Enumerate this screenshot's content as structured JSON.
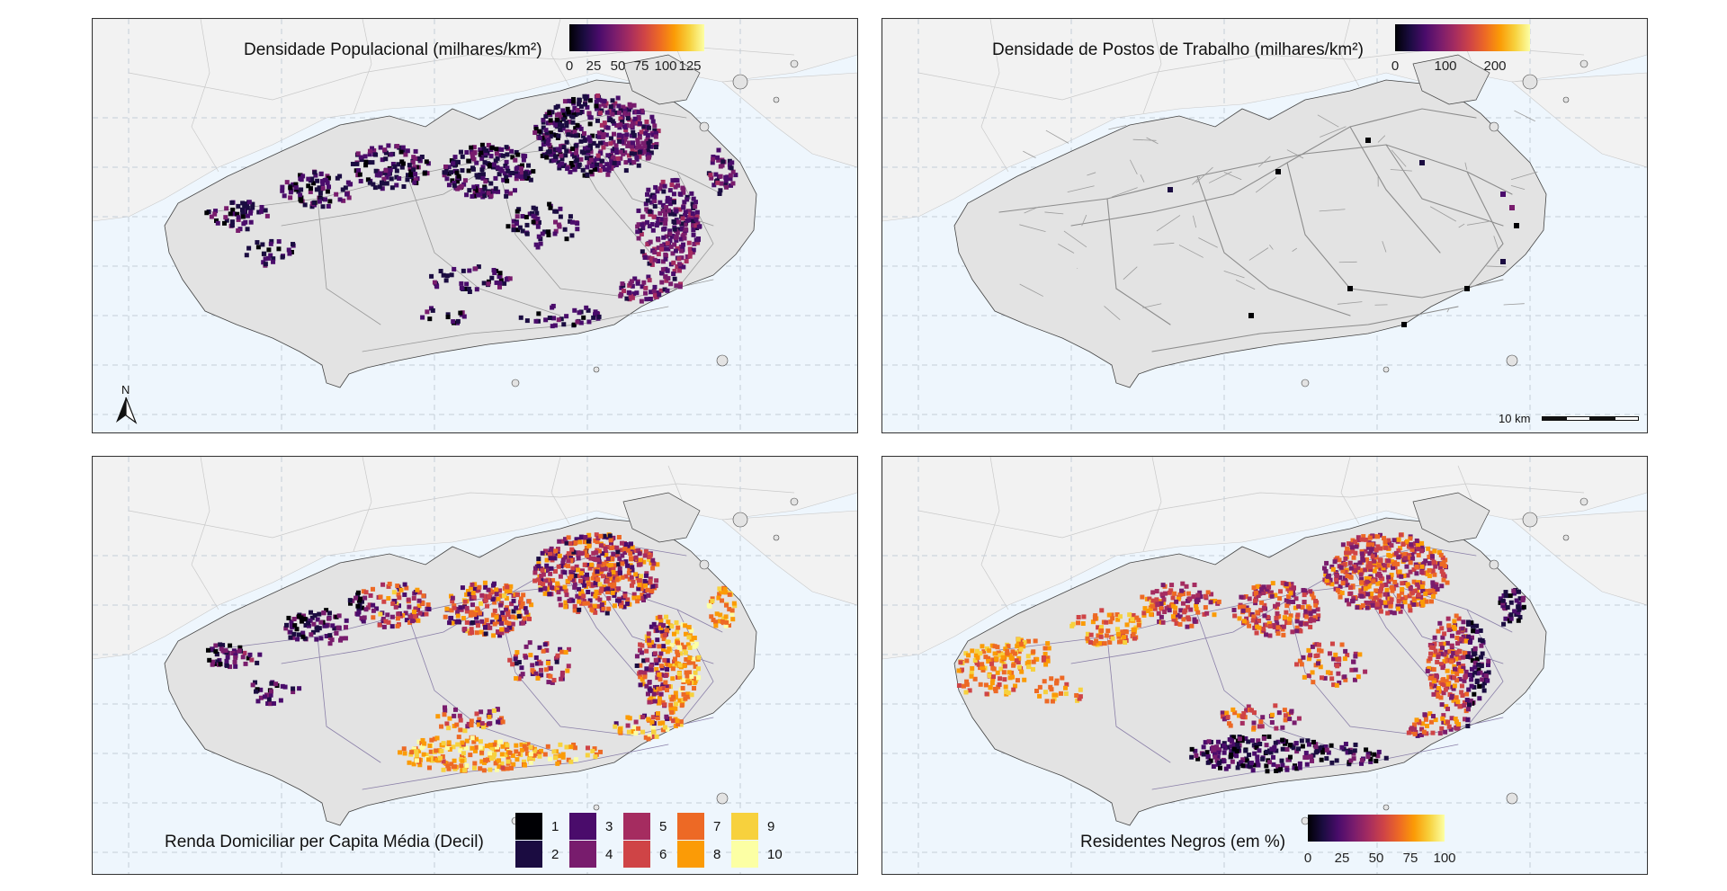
{
  "panels": {
    "population": {
      "title": "Densidade Populacional (milhares/km²)",
      "ticks": [
        "0",
        "25",
        "50",
        "75",
        "100",
        "125"
      ],
      "tick_values": [
        0,
        25,
        50,
        75,
        100,
        125
      ],
      "range": [
        0,
        140
      ]
    },
    "jobs": {
      "title": "Densidade de Postos de Trabalho (milhares/km²)",
      "ticks": [
        "0",
        "100",
        "200"
      ],
      "tick_values": [
        0,
        100,
        200
      ],
      "range": [
        0,
        270
      ],
      "scale_label": "10 km"
    },
    "income": {
      "title": "Renda Domiciliar per Capita Média (Decil)",
      "deciles": [
        "1",
        "2",
        "3",
        "4",
        "5",
        "6",
        "7",
        "8",
        "9",
        "10"
      ]
    },
    "black_residents": {
      "title": "Residentes Negros (em %)",
      "ticks": [
        "0",
        "25",
        "50",
        "75",
        "100"
      ],
      "tick_values": [
        0,
        25,
        50,
        75,
        100
      ],
      "range": [
        0,
        100
      ]
    }
  },
  "north_label": "N",
  "colors": {
    "ocean": "#eef6fd",
    "land_city": "#e3e3e3",
    "land_other": "#f2f2f2",
    "grid": "#c4cdd8",
    "inferno": [
      "#000004",
      "#1b0c41",
      "#4a0c6b",
      "#781c6d",
      "#a52c60",
      "#cf4446",
      "#ed6925",
      "#fb9b06",
      "#f7d13d",
      "#fcffa4"
    ]
  }
}
